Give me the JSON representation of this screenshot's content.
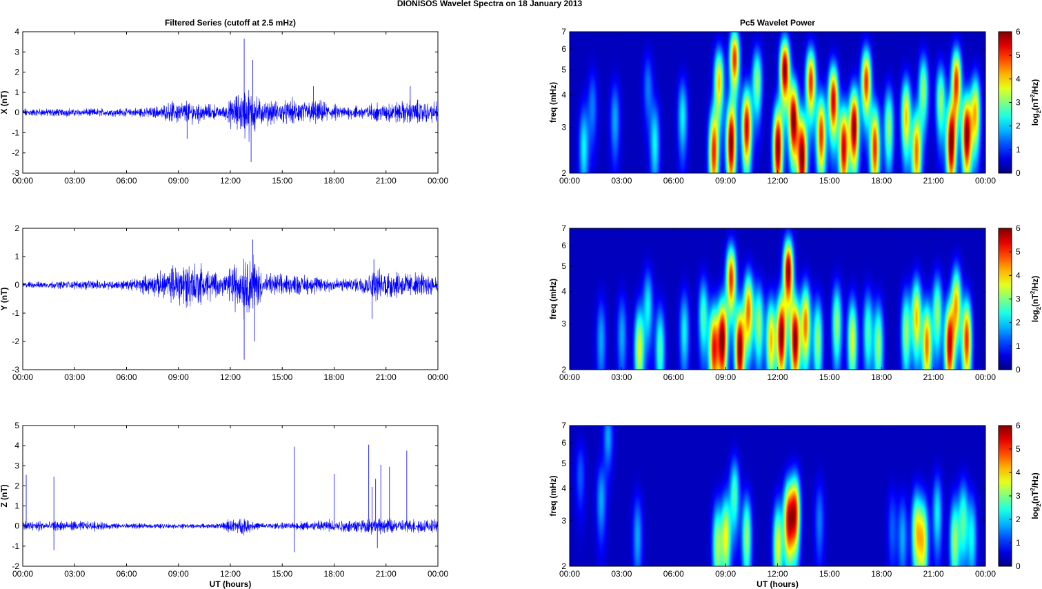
{
  "figure_title": "DIONISOS Wavelet Spectra on 18 January   2013",
  "time_ticks": [
    "00:00",
    "03:00",
    "06:00",
    "09:00",
    "12:00",
    "15:00",
    "18:00",
    "21:00",
    "00:00"
  ],
  "xlabel": "UT (hours)",
  "chart_data": [
    {
      "type": "line",
      "title": "Filtered Series (cutoff at 2.5 mHz)",
      "ylabel": "X (nT)",
      "ylim": [
        -3,
        4
      ],
      "yticks": [
        -3,
        -2,
        -1,
        0,
        1,
        2,
        3,
        4
      ],
      "xlim": [
        0,
        24
      ],
      "color": "#0000ff",
      "envelope": [
        {
          "t": 0,
          "amp": 0.18
        },
        {
          "t": 6,
          "amp": 0.18
        },
        {
          "t": 8,
          "amp": 0.3
        },
        {
          "t": 9,
          "amp": 0.55
        },
        {
          "t": 10,
          "amp": 0.5
        },
        {
          "t": 11.5,
          "amp": 0.25
        },
        {
          "t": 12.5,
          "amp": 0.9
        },
        {
          "t": 13,
          "amp": 1.1
        },
        {
          "t": 14,
          "amp": 0.5
        },
        {
          "t": 16.5,
          "amp": 0.6
        },
        {
          "t": 18.5,
          "amp": 0.3
        },
        {
          "t": 20,
          "amp": 0.35
        },
        {
          "t": 22.5,
          "amp": 0.55
        },
        {
          "t": 24,
          "amp": 0.45
        }
      ],
      "peaks": [
        {
          "t": 12.8,
          "v": 3.65
        },
        {
          "t": 13.3,
          "v": 2.6
        },
        {
          "t": 13.2,
          "v": -2.45
        },
        {
          "t": 16.8,
          "v": 1.3
        },
        {
          "t": 22.4,
          "v": 1.3
        },
        {
          "t": 9.5,
          "v": -1.3
        }
      ]
    },
    {
      "type": "line",
      "ylabel": "Y (nT)",
      "ylim": [
        -3,
        2
      ],
      "yticks": [
        -3,
        -2,
        -1,
        0,
        1,
        2
      ],
      "xlim": [
        0,
        24
      ],
      "color": "#0000ff",
      "envelope": [
        {
          "t": 0,
          "amp": 0.1
        },
        {
          "t": 4,
          "amp": 0.15
        },
        {
          "t": 6,
          "amp": 0.15
        },
        {
          "t": 8,
          "amp": 0.4
        },
        {
          "t": 9.5,
          "amp": 0.8
        },
        {
          "t": 10.5,
          "amp": 0.6
        },
        {
          "t": 11.5,
          "amp": 0.3
        },
        {
          "t": 12.5,
          "amp": 0.9
        },
        {
          "t": 13.2,
          "amp": 1.0
        },
        {
          "t": 14,
          "amp": 0.35
        },
        {
          "t": 17,
          "amp": 0.3
        },
        {
          "t": 19,
          "amp": 0.2
        },
        {
          "t": 20.5,
          "amp": 0.5
        },
        {
          "t": 22.5,
          "amp": 0.4
        },
        {
          "t": 24,
          "amp": 0.3
        }
      ],
      "peaks": [
        {
          "t": 12.8,
          "v": -2.65
        },
        {
          "t": 13.3,
          "v": 1.6
        },
        {
          "t": 13.4,
          "v": -2.0
        },
        {
          "t": 20.2,
          "v": -1.2
        },
        {
          "t": 20.3,
          "v": 0.9
        }
      ]
    },
    {
      "type": "line",
      "ylabel": "Z (nT)",
      "ylim": [
        -2,
        5
      ],
      "yticks": [
        -2,
        -1,
        0,
        1,
        2,
        3,
        4,
        5
      ],
      "xlim": [
        0,
        24
      ],
      "color": "#0000ff",
      "envelope": [
        {
          "t": 0,
          "amp": 0.25
        },
        {
          "t": 4,
          "amp": 0.2
        },
        {
          "t": 6,
          "amp": 0.12
        },
        {
          "t": 11,
          "amp": 0.1
        },
        {
          "t": 12.8,
          "amp": 0.4
        },
        {
          "t": 13.5,
          "amp": 0.15
        },
        {
          "t": 15.5,
          "amp": 0.15
        },
        {
          "t": 17,
          "amp": 0.25
        },
        {
          "t": 20,
          "amp": 0.35
        },
        {
          "t": 24,
          "amp": 0.3
        }
      ],
      "peaks": [
        {
          "t": 0.2,
          "v": 2.55
        },
        {
          "t": 1.8,
          "v": 2.45
        },
        {
          "t": 1.8,
          "v": -1.2
        },
        {
          "t": 15.7,
          "v": 3.95
        },
        {
          "t": 15.7,
          "v": -1.3
        },
        {
          "t": 18,
          "v": 2.6
        },
        {
          "t": 20,
          "v": 4.05
        },
        {
          "t": 20.2,
          "v": 1.95
        },
        {
          "t": 20.4,
          "v": 2.35
        },
        {
          "t": 20.5,
          "v": -1.1
        },
        {
          "t": 20.7,
          "v": 3.05
        },
        {
          "t": 21.2,
          "v": 2.95
        },
        {
          "t": 22.2,
          "v": 3.75
        }
      ]
    },
    {
      "type": "heatmap",
      "title": "Pc5 Wavelet Power",
      "ylabel": "freq (mHz)",
      "yscale": "log",
      "ylim": [
        2,
        7
      ],
      "yticks": [
        2,
        3,
        4,
        5,
        6,
        7
      ],
      "xlim": [
        0,
        24
      ],
      "colorbar_label": "log2(nT^2/Hz)",
      "colorbar_range": [
        0,
        6
      ],
      "colorbar_ticks": [
        0,
        1,
        2,
        3,
        4,
        5,
        6
      ],
      "colormap": "jet",
      "blobs": [
        {
          "t": 0.8,
          "f": 2.5,
          "p": 2
        },
        {
          "t": 1.3,
          "f": 3.6,
          "p": 1.2
        },
        {
          "t": 2.6,
          "f": 3.2,
          "p": 1.5
        },
        {
          "t": 4.5,
          "f": 4.3,
          "p": 1.2
        },
        {
          "t": 4.9,
          "f": 2.6,
          "p": 2
        },
        {
          "t": 6.5,
          "f": 3.3,
          "p": 2
        },
        {
          "t": 8.3,
          "f": 2.4,
          "p": 5
        },
        {
          "t": 8.6,
          "f": 4.5,
          "p": 4
        },
        {
          "t": 9.3,
          "f": 2.6,
          "p": 6
        },
        {
          "t": 9.5,
          "f": 5.5,
          "p": 5
        },
        {
          "t": 10.2,
          "f": 3,
          "p": 5.5
        },
        {
          "t": 10.8,
          "f": 4.5,
          "p": 3
        },
        {
          "t": 12,
          "f": 2.5,
          "p": 6
        },
        {
          "t": 12.4,
          "f": 5,
          "p": 6
        },
        {
          "t": 12.9,
          "f": 3.2,
          "p": 6
        },
        {
          "t": 13.4,
          "f": 2.3,
          "p": 6
        },
        {
          "t": 13.9,
          "f": 4.5,
          "p": 5
        },
        {
          "t": 14.5,
          "f": 2.8,
          "p": 5
        },
        {
          "t": 15.2,
          "f": 3.8,
          "p": 5.5
        },
        {
          "t": 15.8,
          "f": 2.5,
          "p": 5.5
        },
        {
          "t": 16.4,
          "f": 3,
          "p": 6
        },
        {
          "t": 17.1,
          "f": 4.5,
          "p": 5
        },
        {
          "t": 17.6,
          "f": 2.5,
          "p": 5
        },
        {
          "t": 18.4,
          "f": 3,
          "p": 3
        },
        {
          "t": 19.4,
          "f": 3.3,
          "p": 4
        },
        {
          "t": 20,
          "f": 2.4,
          "p": 4.5
        },
        {
          "t": 20.4,
          "f": 4.2,
          "p": 3
        },
        {
          "t": 21.4,
          "f": 3.8,
          "p": 3
        },
        {
          "t": 22,
          "f": 2.6,
          "p": 6
        },
        {
          "t": 22.3,
          "f": 4.5,
          "p": 5
        },
        {
          "t": 22.9,
          "f": 2.8,
          "p": 6
        },
        {
          "t": 23.4,
          "f": 3.4,
          "p": 4
        }
      ]
    },
    {
      "type": "heatmap",
      "ylabel": "freq (mHz)",
      "yscale": "log",
      "ylim": [
        2,
        7
      ],
      "yticks": [
        2,
        3,
        4,
        5,
        6,
        7
      ],
      "xlim": [
        0,
        24
      ],
      "colorbar_label": "log2(nT^2/Hz)",
      "colorbar_range": [
        0,
        6
      ],
      "colorbar_ticks": [
        0,
        1,
        2,
        3,
        4,
        5,
        6
      ],
      "colormap": "jet",
      "blobs": [
        {
          "t": 1.8,
          "f": 2.6,
          "p": 1.5
        },
        {
          "t": 3,
          "f": 2.7,
          "p": 1.5
        },
        {
          "t": 4,
          "f": 2.4,
          "p": 3.5
        },
        {
          "t": 4.5,
          "f": 3.5,
          "p": 2
        },
        {
          "t": 5.2,
          "f": 2.4,
          "p": 2.5
        },
        {
          "t": 6.6,
          "f": 2.8,
          "p": 2
        },
        {
          "t": 7.7,
          "f": 3.2,
          "p": 2.5
        },
        {
          "t": 8.3,
          "f": 2.4,
          "p": 5
        },
        {
          "t": 8.8,
          "f": 2.6,
          "p": 6
        },
        {
          "t": 9.3,
          "f": 4.5,
          "p": 5
        },
        {
          "t": 9.8,
          "f": 2.4,
          "p": 6
        },
        {
          "t": 10.3,
          "f": 3.4,
          "p": 4.5
        },
        {
          "t": 10.9,
          "f": 3,
          "p": 3
        },
        {
          "t": 11.6,
          "f": 2.6,
          "p": 4
        },
        {
          "t": 12.2,
          "f": 2.7,
          "p": 6
        },
        {
          "t": 12.6,
          "f": 4.8,
          "p": 6
        },
        {
          "t": 13,
          "f": 2.6,
          "p": 6
        },
        {
          "t": 13.6,
          "f": 3,
          "p": 4.5
        },
        {
          "t": 14.3,
          "f": 2.6,
          "p": 3
        },
        {
          "t": 15.4,
          "f": 3,
          "p": 3
        },
        {
          "t": 16.3,
          "f": 2.6,
          "p": 3.5
        },
        {
          "t": 17.2,
          "f": 2.8,
          "p": 2.5
        },
        {
          "t": 17.8,
          "f": 2.5,
          "p": 3
        },
        {
          "t": 19.4,
          "f": 2.8,
          "p": 3
        },
        {
          "t": 20,
          "f": 3.2,
          "p": 4
        },
        {
          "t": 20.6,
          "f": 2.5,
          "p": 4.5
        },
        {
          "t": 21.2,
          "f": 3.3,
          "p": 3
        },
        {
          "t": 21.9,
          "f": 2.5,
          "p": 5.5
        },
        {
          "t": 22.3,
          "f": 3.6,
          "p": 4
        },
        {
          "t": 22.9,
          "f": 2.6,
          "p": 5
        }
      ]
    },
    {
      "type": "heatmap",
      "ylabel": "freq (mHz)",
      "yscale": "log",
      "ylim": [
        2,
        7
      ],
      "yticks": [
        2,
        3,
        4,
        5,
        6,
        7
      ],
      "xlim": [
        0,
        24
      ],
      "colorbar_label": "log2(nT^2/Hz)",
      "colorbar_range": [
        0,
        6
      ],
      "colorbar_ticks": [
        0,
        1,
        2,
        3,
        4,
        5,
        6
      ],
      "colormap": "jet",
      "blobs": [
        {
          "t": 0.6,
          "f": 4.5,
          "p": 1
        },
        {
          "t": 1.8,
          "f": 3.6,
          "p": 1.5
        },
        {
          "t": 2.2,
          "f": 6.3,
          "p": 1.5
        },
        {
          "t": 3.9,
          "f": 2.6,
          "p": 1.5
        },
        {
          "t": 8.5,
          "f": 2.4,
          "p": 3
        },
        {
          "t": 9,
          "f": 2.6,
          "p": 3.5
        },
        {
          "t": 9.5,
          "f": 3.8,
          "p": 2.5
        },
        {
          "t": 10.2,
          "f": 2.6,
          "p": 3
        },
        {
          "t": 12,
          "f": 2.4,
          "p": 3.5
        },
        {
          "t": 12.6,
          "f": 3,
          "p": 5
        },
        {
          "t": 13,
          "f": 3.2,
          "p": 5
        },
        {
          "t": 14.4,
          "f": 3,
          "p": 1.2
        },
        {
          "t": 18.6,
          "f": 2.8,
          "p": 1
        },
        {
          "t": 19.2,
          "f": 2.6,
          "p": 1.5
        },
        {
          "t": 20,
          "f": 2.7,
          "p": 3.5
        },
        {
          "t": 20.4,
          "f": 2.5,
          "p": 3.5
        },
        {
          "t": 21.2,
          "f": 3.2,
          "p": 2
        },
        {
          "t": 22.2,
          "f": 2.5,
          "p": 3
        },
        {
          "t": 22.7,
          "f": 3,
          "p": 2.5
        },
        {
          "t": 23.2,
          "f": 2.6,
          "p": 2
        }
      ]
    }
  ]
}
